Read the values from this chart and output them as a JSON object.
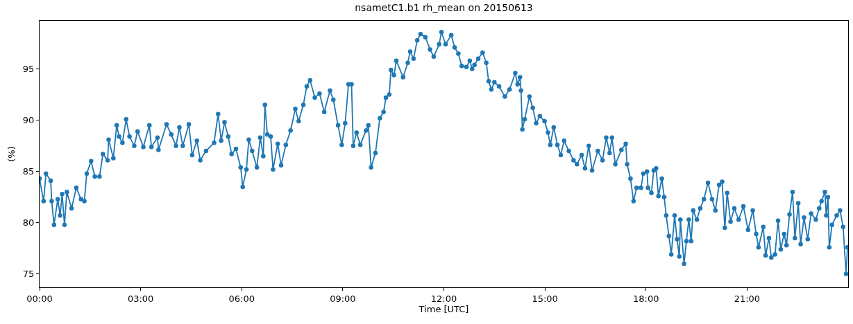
{
  "chart_data": {
    "type": "line",
    "title": "nsametC1.b1 rh_mean on 20150613",
    "xlabel": "Time [UTC]",
    "ylabel": "(%)",
    "x": [
      0.0,
      0.12,
      0.19,
      0.33,
      0.36,
      0.43,
      0.54,
      0.61,
      0.67,
      0.74,
      0.81,
      0.95,
      1.09,
      1.23,
      1.33,
      1.4,
      1.53,
      1.64,
      1.78,
      1.88,
      2.02,
      2.05,
      2.19,
      2.29,
      2.36,
      2.46,
      2.57,
      2.67,
      2.81,
      2.91,
      3.08,
      3.26,
      3.32,
      3.5,
      3.53,
      3.77,
      3.91,
      4.05,
      4.15,
      4.25,
      4.43,
      4.53,
      4.67,
      4.77,
      4.94,
      5.18,
      5.3,
      5.39,
      5.49,
      5.6,
      5.7,
      5.83,
      5.97,
      6.03,
      6.14,
      6.21,
      6.31,
      6.45,
      6.55,
      6.64,
      6.69,
      6.76,
      6.86,
      6.93,
      7.07,
      7.17,
      7.31,
      7.45,
      7.59,
      7.69,
      7.83,
      7.93,
      8.03,
      8.17,
      8.31,
      8.45,
      8.62,
      8.72,
      8.86,
      8.97,
      9.07,
      9.17,
      9.26,
      9.31,
      9.41,
      9.52,
      9.69,
      9.76,
      9.84,
      9.97,
      10.1,
      10.21,
      10.28,
      10.38,
      10.43,
      10.52,
      10.59,
      10.79,
      10.93,
      11.0,
      11.1,
      11.21,
      11.31,
      11.45,
      11.59,
      11.7,
      11.86,
      11.93,
      12.05,
      12.22,
      12.32,
      12.43,
      12.53,
      12.67,
      12.77,
      12.84,
      12.91,
      13.02,
      13.15,
      13.26,
      13.33,
      13.41,
      13.5,
      13.64,
      13.81,
      13.95,
      14.12,
      14.19,
      14.26,
      14.29,
      14.33,
      14.4,
      14.54,
      14.64,
      14.74,
      14.85,
      14.99,
      15.09,
      15.16,
      15.26,
      15.37,
      15.47,
      15.57,
      15.71,
      15.85,
      15.95,
      16.09,
      16.19,
      16.3,
      16.4,
      16.57,
      16.71,
      16.82,
      16.92,
      16.99,
      17.09,
      17.27,
      17.4,
      17.44,
      17.54,
      17.63,
      17.72,
      17.85,
      17.92,
      18.03,
      18.06,
      18.16,
      18.23,
      18.3,
      18.37,
      18.47,
      18.54,
      18.6,
      18.68,
      18.75,
      18.85,
      18.92,
      18.99,
      19.02,
      19.13,
      19.2,
      19.27,
      19.34,
      19.4,
      19.51,
      19.61,
      19.72,
      19.84,
      19.96,
      20.06,
      20.17,
      20.26,
      20.34,
      20.41,
      20.51,
      20.62,
      20.75,
      20.89,
      21.03,
      21.17,
      21.27,
      21.34,
      21.48,
      21.55,
      21.65,
      21.72,
      21.83,
      21.92,
      22.0,
      22.1,
      22.17,
      22.26,
      22.35,
      22.42,
      22.52,
      22.59,
      22.69,
      22.8,
      22.9,
      23.04,
      23.14,
      23.21,
      23.31,
      23.35,
      23.4,
      23.44,
      23.52,
      23.66,
      23.76,
      23.85,
      23.94,
      23.98
    ],
    "series": [
      {
        "color": "#1f77b4",
        "values": [
          84.3,
          82.1,
          84.8,
          84.1,
          82.1,
          79.8,
          82.3,
          80.7,
          82.8,
          79.8,
          83.0,
          81.4,
          83.4,
          82.3,
          82.1,
          84.8,
          86.0,
          84.5,
          84.5,
          86.7,
          86.1,
          88.1,
          86.3,
          89.5,
          88.4,
          87.8,
          90.1,
          88.4,
          87.5,
          88.9,
          87.4,
          89.5,
          87.4,
          88.3,
          87.1,
          89.6,
          88.6,
          87.5,
          89.3,
          87.5,
          89.6,
          86.6,
          88.0,
          86.1,
          87.0,
          87.8,
          90.6,
          88.0,
          89.8,
          88.4,
          86.7,
          87.2,
          85.4,
          83.5,
          85.2,
          88.1,
          87.0,
          85.4,
          88.3,
          86.5,
          91.5,
          88.6,
          88.4,
          85.2,
          87.7,
          85.6,
          87.6,
          89.0,
          91.1,
          89.9,
          91.5,
          93.3,
          93.9,
          92.2,
          92.6,
          90.8,
          92.9,
          92.0,
          89.5,
          87.6,
          89.7,
          93.5,
          93.5,
          87.5,
          88.8,
          87.6,
          89.0,
          89.5,
          85.4,
          86.8,
          90.2,
          90.8,
          92.2,
          92.5,
          94.9,
          94.4,
          95.8,
          94.2,
          95.6,
          96.7,
          96.0,
          97.8,
          98.4,
          98.1,
          96.9,
          96.2,
          97.4,
          98.6,
          97.4,
          98.3,
          97.1,
          96.5,
          95.3,
          95.2,
          95.8,
          95.0,
          95.4,
          96.0,
          96.6,
          95.6,
          93.8,
          93.0,
          93.7,
          93.3,
          92.3,
          93.0,
          94.6,
          93.5,
          94.2,
          92.9,
          89.1,
          90.1,
          92.3,
          91.2,
          89.7,
          90.4,
          89.9,
          88.8,
          87.6,
          89.3,
          87.6,
          86.6,
          88.0,
          87.0,
          86.1,
          85.7,
          86.6,
          85.3,
          87.5,
          85.1,
          87.0,
          86.1,
          88.3,
          86.8,
          88.3,
          85.7,
          87.1,
          87.7,
          85.7,
          84.3,
          82.1,
          83.4,
          83.4,
          84.8,
          85.0,
          83.4,
          82.9,
          85.1,
          85.3,
          82.6,
          84.3,
          82.5,
          80.7,
          78.7,
          76.9,
          80.7,
          78.4,
          76.7,
          80.3,
          76.0,
          78.2,
          80.3,
          78.2,
          81.2,
          80.3,
          81.4,
          82.3,
          83.9,
          82.3,
          81.2,
          83.7,
          84.0,
          79.5,
          82.9,
          80.1,
          81.4,
          80.3,
          81.6,
          79.3,
          81.2,
          78.9,
          77.6,
          79.6,
          76.8,
          78.5,
          76.6,
          76.9,
          80.2,
          77.4,
          78.9,
          77.8,
          80.8,
          83.0,
          78.5,
          81.9,
          77.9,
          80.5,
          78.4,
          80.9,
          80.3,
          81.4,
          82.1,
          83.0,
          80.7,
          82.5,
          77.6,
          79.8,
          80.7,
          81.2,
          79.6,
          75.0,
          77.6
        ]
      }
    ],
    "xlim": [
      0,
      24
    ],
    "ylim": [
      73.7,
      99.7
    ],
    "xticks": [
      {
        "value": 0,
        "label": "00:00"
      },
      {
        "value": 3,
        "label": "03:00"
      },
      {
        "value": 6,
        "label": "06:00"
      },
      {
        "value": 9,
        "label": "09:00"
      },
      {
        "value": 12,
        "label": "12:00"
      },
      {
        "value": 15,
        "label": "15:00"
      },
      {
        "value": 18,
        "label": "18:00"
      },
      {
        "value": 21,
        "label": "21:00"
      }
    ],
    "yticks": [
      75,
      80,
      85,
      90,
      95
    ],
    "marker": "circle",
    "line_style": "solid"
  }
}
